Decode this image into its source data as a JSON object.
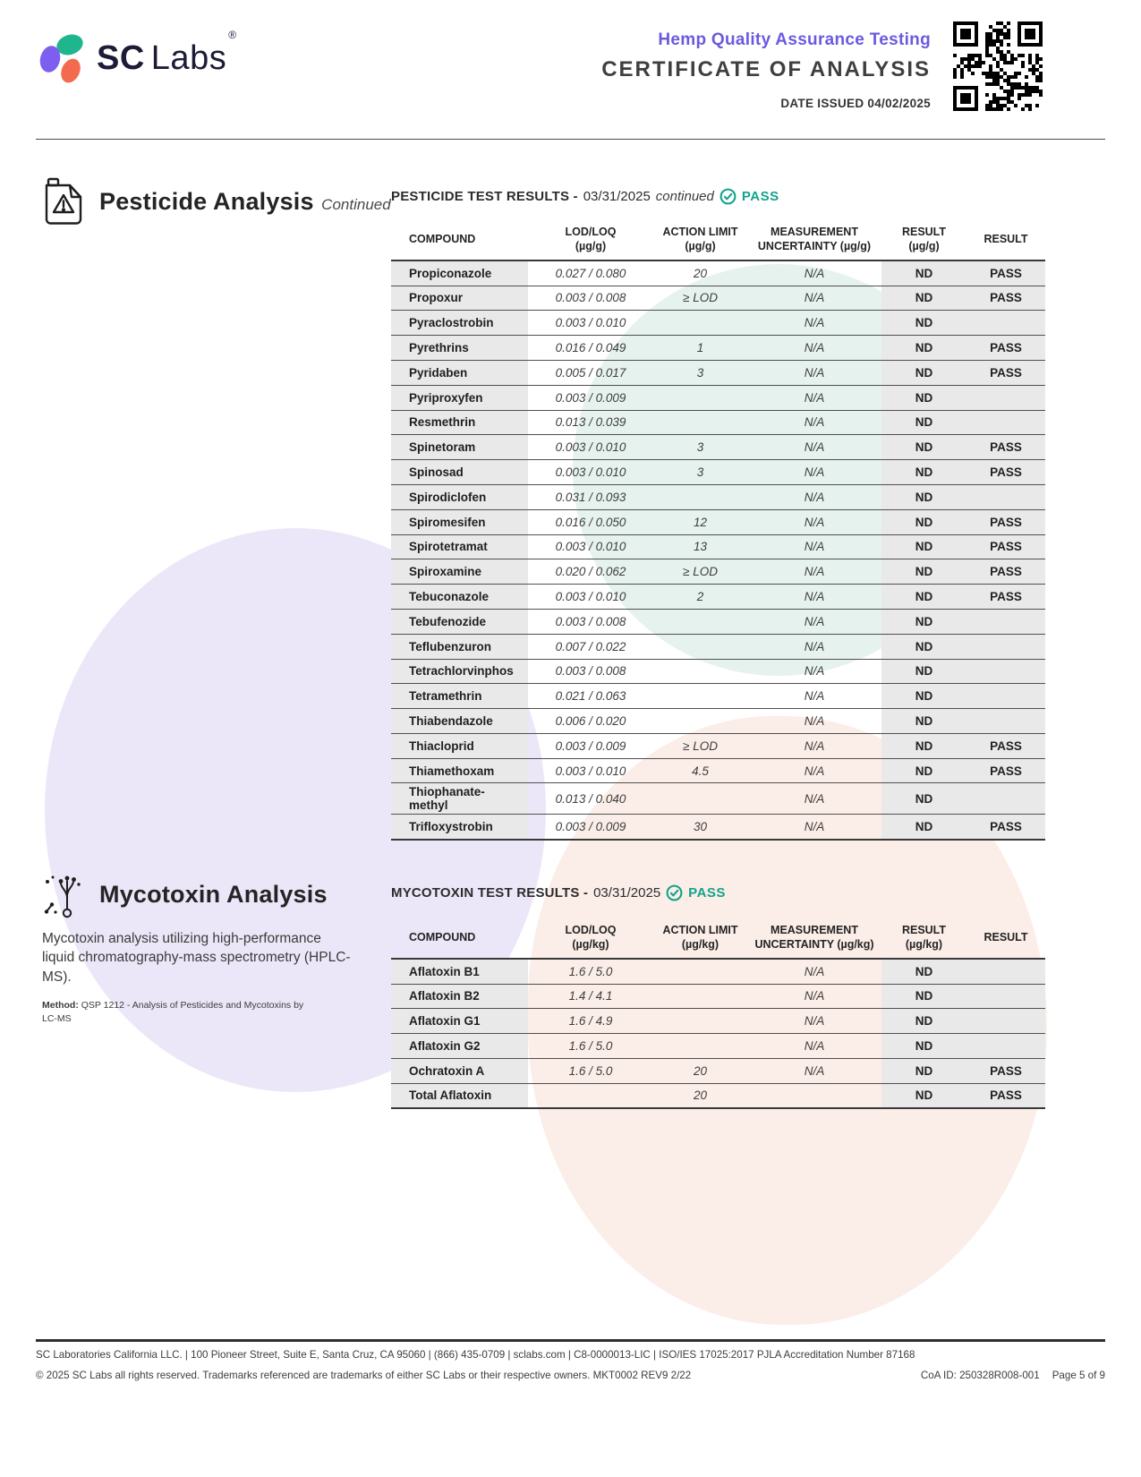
{
  "colors": {
    "purple": "#6a5ae0",
    "teal_pass": "#12a38a",
    "cell_gray": "#e9e9e9",
    "logo_purple": "#7c5ff0",
    "logo_teal": "#1fb68e",
    "logo_orange": "#f26b4f"
  },
  "header": {
    "logo_sc": "SC",
    "logo_labs": "Labs",
    "logo_reg": "®",
    "title_line1": "Hemp Quality Assurance Testing",
    "title_line2": "CERTIFICATE OF ANALYSIS",
    "date_issued": "DATE ISSUED 04/02/2025"
  },
  "pesticide_section": {
    "heading": "Pesticide Analysis",
    "heading_suffix": "Continued",
    "results_title": "PESTICIDE TEST RESULTS -",
    "results_date": "03/31/2025",
    "results_continued": "continued",
    "status": "PASS",
    "table": {
      "headers": [
        {
          "label": "COMPOUND",
          "unit": ""
        },
        {
          "label": "LOD/LOQ",
          "unit": "(µg/g)"
        },
        {
          "label": "ACTION LIMIT",
          "unit": "(µg/g)"
        },
        {
          "label": "MEASUREMENT",
          "unit": "UNCERTAINTY (µg/g)"
        },
        {
          "label": "RESULT",
          "unit": "(µg/g)"
        },
        {
          "label": "RESULT",
          "unit": ""
        }
      ],
      "rows": [
        {
          "compound": "Propiconazole",
          "lod_loq": "0.027 / 0.080",
          "action_limit": "20",
          "uncertainty": "N/A",
          "result_value": "ND",
          "result_status": "PASS"
        },
        {
          "compound": "Propoxur",
          "lod_loq": "0.003 / 0.008",
          "action_limit": "≥ LOD",
          "uncertainty": "N/A",
          "result_value": "ND",
          "result_status": "PASS"
        },
        {
          "compound": "Pyraclostrobin",
          "lod_loq": "0.003 / 0.010",
          "action_limit": "",
          "uncertainty": "N/A",
          "result_value": "ND",
          "result_status": ""
        },
        {
          "compound": "Pyrethrins",
          "lod_loq": "0.016 / 0.049",
          "action_limit": "1",
          "uncertainty": "N/A",
          "result_value": "ND",
          "result_status": "PASS"
        },
        {
          "compound": "Pyridaben",
          "lod_loq": "0.005 / 0.017",
          "action_limit": "3",
          "uncertainty": "N/A",
          "result_value": "ND",
          "result_status": "PASS"
        },
        {
          "compound": "Pyriproxyfen",
          "lod_loq": "0.003 / 0.009",
          "action_limit": "",
          "uncertainty": "N/A",
          "result_value": "ND",
          "result_status": ""
        },
        {
          "compound": "Resmethrin",
          "lod_loq": "0.013 / 0.039",
          "action_limit": "",
          "uncertainty": "N/A",
          "result_value": "ND",
          "result_status": ""
        },
        {
          "compound": "Spinetoram",
          "lod_loq": "0.003 / 0.010",
          "action_limit": "3",
          "uncertainty": "N/A",
          "result_value": "ND",
          "result_status": "PASS"
        },
        {
          "compound": "Spinosad",
          "lod_loq": "0.003 / 0.010",
          "action_limit": "3",
          "uncertainty": "N/A",
          "result_value": "ND",
          "result_status": "PASS"
        },
        {
          "compound": "Spirodiclofen",
          "lod_loq": "0.031 / 0.093",
          "action_limit": "",
          "uncertainty": "N/A",
          "result_value": "ND",
          "result_status": ""
        },
        {
          "compound": "Spiromesifen",
          "lod_loq": "0.016 / 0.050",
          "action_limit": "12",
          "uncertainty": "N/A",
          "result_value": "ND",
          "result_status": "PASS"
        },
        {
          "compound": "Spirotetramat",
          "lod_loq": "0.003 / 0.010",
          "action_limit": "13",
          "uncertainty": "N/A",
          "result_value": "ND",
          "result_status": "PASS"
        },
        {
          "compound": "Spiroxamine",
          "lod_loq": "0.020 / 0.062",
          "action_limit": "≥ LOD",
          "uncertainty": "N/A",
          "result_value": "ND",
          "result_status": "PASS"
        },
        {
          "compound": "Tebuconazole",
          "lod_loq": "0.003 / 0.010",
          "action_limit": "2",
          "uncertainty": "N/A",
          "result_value": "ND",
          "result_status": "PASS"
        },
        {
          "compound": "Tebufenozide",
          "lod_loq": "0.003 / 0.008",
          "action_limit": "",
          "uncertainty": "N/A",
          "result_value": "ND",
          "result_status": ""
        },
        {
          "compound": "Teflubenzuron",
          "lod_loq": "0.007 / 0.022",
          "action_limit": "",
          "uncertainty": "N/A",
          "result_value": "ND",
          "result_status": ""
        },
        {
          "compound": "Tetrachlorvinphos",
          "lod_loq": "0.003 / 0.008",
          "action_limit": "",
          "uncertainty": "N/A",
          "result_value": "ND",
          "result_status": ""
        },
        {
          "compound": "Tetramethrin",
          "lod_loq": "0.021 / 0.063",
          "action_limit": "",
          "uncertainty": "N/A",
          "result_value": "ND",
          "result_status": ""
        },
        {
          "compound": "Thiabendazole",
          "lod_loq": "0.006 / 0.020",
          "action_limit": "",
          "uncertainty": "N/A",
          "result_value": "ND",
          "result_status": ""
        },
        {
          "compound": "Thiacloprid",
          "lod_loq": "0.003 / 0.009",
          "action_limit": "≥ LOD",
          "uncertainty": "N/A",
          "result_value": "ND",
          "result_status": "PASS"
        },
        {
          "compound": "Thiamethoxam",
          "lod_loq": "0.003 / 0.010",
          "action_limit": "4.5",
          "uncertainty": "N/A",
          "result_value": "ND",
          "result_status": "PASS"
        },
        {
          "compound": "Thiophanate-methyl",
          "lod_loq": "0.013 / 0.040",
          "action_limit": "",
          "uncertainty": "N/A",
          "result_value": "ND",
          "result_status": ""
        },
        {
          "compound": "Trifloxystrobin",
          "lod_loq": "0.003 / 0.009",
          "action_limit": "30",
          "uncertainty": "N/A",
          "result_value": "ND",
          "result_status": "PASS"
        }
      ]
    }
  },
  "mycotoxin_section": {
    "heading": "Mycotoxin Analysis",
    "description": "Mycotoxin analysis utilizing high-performance liquid chromatography-mass spectrometry (HPLC-MS).",
    "method_label": "Method:",
    "method_text": " QSP 1212 - Analysis of Pesticides and Mycotoxins by LC-MS",
    "results_title": "MYCOTOXIN TEST RESULTS -",
    "results_date": "03/31/2025",
    "status": "PASS",
    "table": {
      "headers": [
        {
          "label": "COMPOUND",
          "unit": ""
        },
        {
          "label": "LOD/LOQ",
          "unit": "(µg/kg)"
        },
        {
          "label": "ACTION LIMIT",
          "unit": "(µg/kg)"
        },
        {
          "label": "MEASUREMENT",
          "unit": "UNCERTAINTY (µg/kg)"
        },
        {
          "label": "RESULT",
          "unit": "(µg/kg)"
        },
        {
          "label": "RESULT",
          "unit": ""
        }
      ],
      "rows": [
        {
          "compound": "Aflatoxin B1",
          "lod_loq": "1.6 / 5.0",
          "action_limit": "",
          "uncertainty": "N/A",
          "result_value": "ND",
          "result_status": ""
        },
        {
          "compound": "Aflatoxin B2",
          "lod_loq": "1.4 / 4.1",
          "action_limit": "",
          "uncertainty": "N/A",
          "result_value": "ND",
          "result_status": ""
        },
        {
          "compound": "Aflatoxin G1",
          "lod_loq": "1.6 / 4.9",
          "action_limit": "",
          "uncertainty": "N/A",
          "result_value": "ND",
          "result_status": ""
        },
        {
          "compound": "Aflatoxin G2",
          "lod_loq": "1.6 / 5.0",
          "action_limit": "",
          "uncertainty": "N/A",
          "result_value": "ND",
          "result_status": ""
        },
        {
          "compound": "Ochratoxin A",
          "lod_loq": "1.6 / 5.0",
          "action_limit": "20",
          "uncertainty": "N/A",
          "result_value": "ND",
          "result_status": "PASS"
        },
        {
          "compound": "Total Aflatoxin",
          "lod_loq": "",
          "action_limit": "20",
          "uncertainty": "",
          "result_value": "ND",
          "result_status": "PASS"
        }
      ]
    }
  },
  "footer": {
    "line1": "SC Laboratories California LLC. | 100 Pioneer Street, Suite E, Santa Cruz, CA 95060 | (866) 435-0709 | sclabs.com | C8-0000013-LIC | ISO/IES 17025:2017 PJLA Accreditation Number 87168",
    "line2": "© 2025 SC Labs all rights reserved. Trademarks referenced are trademarks of either SC Labs or their respective owners. MKT0002 REV9 2/22",
    "coa_id": "CoA ID: 250328R008-001",
    "page_num": "Page 5 of 9"
  }
}
